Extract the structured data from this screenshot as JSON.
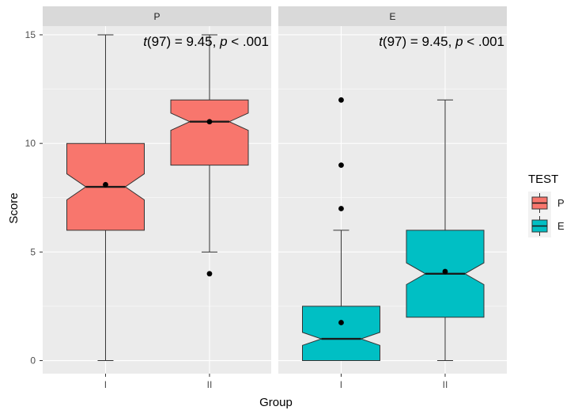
{
  "chart_data": {
    "type": "boxplot",
    "facets": [
      {
        "name": "P",
        "test": "P",
        "color": "#F8766D",
        "annotation": {
          "t_label": "t",
          "t_value": "(97) = 9.45, ",
          "p_label": "p",
          "p_value": " < .001"
        },
        "groups": [
          {
            "category": "I",
            "min": 0,
            "q1": 6,
            "median": 8,
            "q3": 10,
            "max": 15,
            "notch_low": 7.4,
            "notch_high": 8.6,
            "mean": 8.1,
            "outliers": []
          },
          {
            "category": "II",
            "min": 5,
            "q1": 9,
            "median": 11,
            "q3": 12,
            "max": 15,
            "notch_low": 10.6,
            "notch_high": 11.4,
            "mean": 11.0,
            "outliers": [
              4
            ]
          }
        ]
      },
      {
        "name": "E",
        "test": "E",
        "color": "#00BFC4",
        "annotation": {
          "t_label": "t",
          "t_value": "(97) = 9.45, ",
          "p_label": "p",
          "p_value": " < .001"
        },
        "groups": [
          {
            "category": "I",
            "min": 0,
            "q1": 0,
            "median": 1,
            "q3": 2.5,
            "max": 6,
            "notch_low": 0.7,
            "notch_high": 1.3,
            "mean": 1.75,
            "outliers": [
              7,
              9,
              12
            ]
          },
          {
            "category": "II",
            "min": 0,
            "q1": 2,
            "median": 4,
            "q3": 6,
            "max": 12,
            "notch_low": 3.5,
            "notch_high": 4.5,
            "mean": 4.1,
            "outliers": []
          }
        ]
      }
    ],
    "categories": [
      "I",
      "II"
    ],
    "xlabel": "Group",
    "ylabel": "Score",
    "ylim": [
      -0.6,
      15.4
    ],
    "yticks": [
      0,
      5,
      10,
      15
    ],
    "grid": true,
    "legend": {
      "title": "TEST",
      "position": "right",
      "items": [
        {
          "label": "P",
          "color": "#F8766D"
        },
        {
          "label": "E",
          "color": "#00BFC4"
        }
      ]
    },
    "colors": {
      "panel_background": "#EBEBEB",
      "strip_background": "#D9D9D9",
      "grid_major": "#FFFFFF",
      "box_outline": "#333333",
      "point": "#000000",
      "tick_text": "#4D4D4D"
    }
  }
}
